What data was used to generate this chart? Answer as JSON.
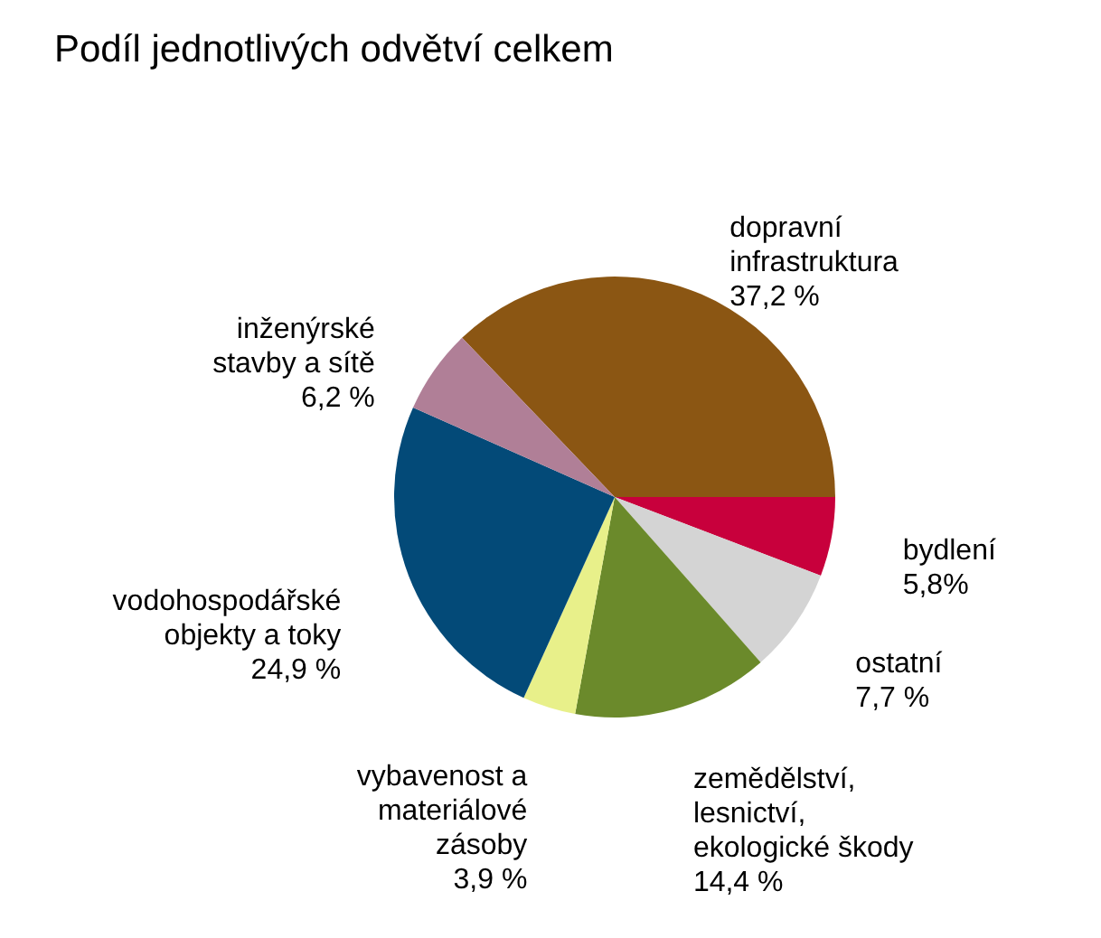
{
  "chart_data": {
    "type": "pie",
    "title": "Podíl jednotlivých odvětví celkem",
    "categories": [
      "dopravní infrastruktura",
      "bydlení",
      "ostatní",
      "zemědělství, lesnictví, ekologické škody",
      "vybavenost a materiálové zásoby",
      "vodohospodářské objekty a toky",
      "inženýrské stavby a sítě"
    ],
    "values": [
      37.2,
      5.8,
      7.7,
      14.4,
      3.9,
      24.9,
      6.2
    ],
    "colors": [
      "#8b5613",
      "#c8003c",
      "#d4d4d4",
      "#6b8a2b",
      "#e8f08a",
      "#034a78",
      "#b07f97"
    ],
    "value_labels": [
      "37,2 %",
      "5,8%",
      "7,7 %",
      "14,4 %",
      "3,9 %",
      "24,9 %",
      "6,2 %"
    ],
    "legend": false
  }
}
